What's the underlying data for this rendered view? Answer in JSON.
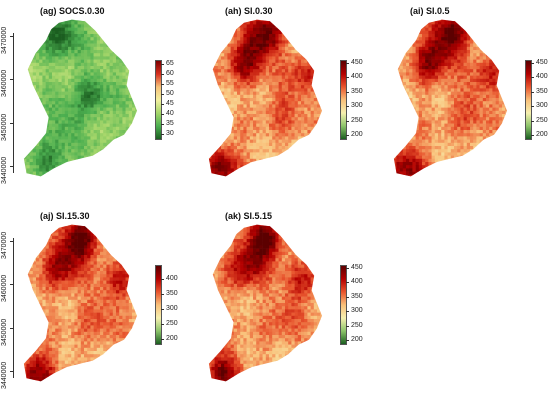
{
  "panels": [
    {
      "title": "(ag) SOCS.0.30",
      "palette": "green",
      "y_ticks": [
        "3470000",
        "3460000",
        "3450000",
        "3440000"
      ],
      "legend_ticks": [
        "65",
        "60",
        "55",
        "50",
        "45",
        "40",
        "35",
        "30"
      ],
      "legend_range": [
        28,
        67
      ]
    },
    {
      "title": "(ah) SI.0.30",
      "palette": "red",
      "y_ticks": [],
      "legend_ticks": [
        "450",
        "400",
        "350",
        "300",
        "250",
        "200"
      ],
      "legend_range": [
        190,
        460
      ]
    },
    {
      "title": "(ai) SI.0.5",
      "palette": "red",
      "y_ticks": [],
      "legend_ticks": [
        "450",
        "400",
        "350",
        "300",
        "250",
        "200"
      ],
      "legend_range": [
        190,
        460
      ]
    },
    {
      "title": "(aj) SI.15.30",
      "palette": "red",
      "y_ticks": [
        "3470000",
        "3460000",
        "3450000",
        "3440000"
      ],
      "legend_ticks": [
        "400",
        "350",
        "300",
        "250",
        "200"
      ],
      "legend_range": [
        185,
        445
      ]
    },
    {
      "title": "(ak) SI.5.15",
      "palette": "red",
      "y_ticks": [],
      "legend_ticks": [
        "450",
        "400",
        "350",
        "300",
        "250",
        "200"
      ],
      "legend_range": [
        190,
        460
      ]
    }
  ],
  "colors": {
    "green_ramp": [
      "#1b5e20",
      "#4caf50",
      "#a5d66a",
      "#f3f0a0",
      "#f6c27a",
      "#d7301f",
      "#7f0000"
    ],
    "red_ramp": [
      "#1b5e20",
      "#8cc46a",
      "#f6f0b0",
      "#f9c07a",
      "#e8552e",
      "#b30000",
      "#5c0000"
    ]
  }
}
